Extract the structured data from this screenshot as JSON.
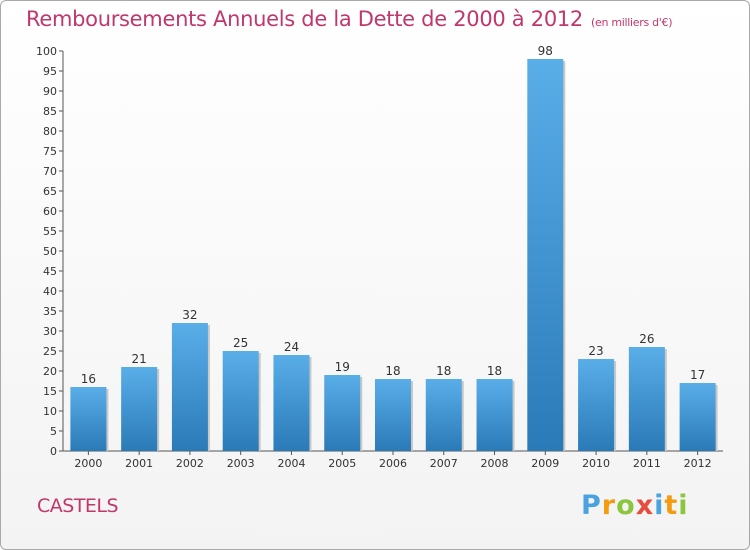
{
  "header": {
    "title": "Remboursements Annuels de la Dette de 2000 à 2012",
    "subtitle": "(en milliers d'€)"
  },
  "footer": {
    "commune": "CASTELS",
    "logo": "Proxiti"
  },
  "colors": {
    "title": "#c0376b",
    "bar_top": "#5aaee8",
    "bar_bottom": "#2a7ab8"
  },
  "chart_data": {
    "type": "bar",
    "title": "Remboursements Annuels de la Dette de 2000 à 2012",
    "subtitle": "(en milliers d'€)",
    "xlabel": "",
    "ylabel": "",
    "categories": [
      "2000",
      "2001",
      "2002",
      "2003",
      "2004",
      "2005",
      "2006",
      "2007",
      "2008",
      "2009",
      "2010",
      "2011",
      "2012"
    ],
    "values": [
      16,
      21,
      32,
      25,
      24,
      19,
      18,
      18,
      18,
      98,
      23,
      26,
      17
    ],
    "data_labels": [
      "16",
      "21",
      "32",
      "25",
      "24",
      "19",
      "18",
      "18",
      "18",
      "98",
      "23",
      "26",
      "17"
    ],
    "ylim": [
      0,
      100
    ],
    "yticks": [
      0,
      5,
      10,
      15,
      20,
      25,
      30,
      35,
      40,
      45,
      50,
      55,
      60,
      65,
      70,
      75,
      80,
      85,
      90,
      95,
      100
    ],
    "ytick_labels": [
      "0",
      "5",
      "10",
      "15",
      "20",
      "25",
      "30",
      "35",
      "40",
      "45",
      "50",
      "55",
      "60",
      "65",
      "70",
      "75",
      "80",
      "85",
      "90",
      "95",
      "100"
    ],
    "grid": false,
    "legend": "none"
  }
}
